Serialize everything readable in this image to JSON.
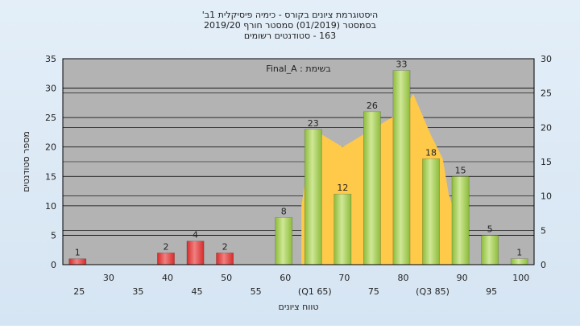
{
  "chart_data": {
    "type": "bar",
    "title_lines": [
      "היסטוגרמת ציונים בקורס - כימיה פיסיקלית 1ב'",
      "בסמסטר  (01/2019)  סמסטר חורף 2019/20",
      "163 - סטודנטים רשומים"
    ],
    "note": "בשימת : Final_A",
    "xlabel": "טווח ציונים",
    "ylabel": "מספר סטודנטים",
    "ylim": [
      0,
      35
    ],
    "y2lim": [
      0,
      30
    ],
    "y_ticks": [
      0,
      5,
      10,
      15,
      20,
      25,
      30,
      35
    ],
    "y2_ticks": [
      0,
      5,
      10,
      15,
      20,
      25,
      30
    ],
    "x_range": [
      22.5,
      102.5
    ],
    "categories": [
      25,
      30,
      35,
      40,
      45,
      50,
      55,
      60,
      65,
      70,
      75,
      80,
      85,
      90,
      95,
      100
    ],
    "x_tick_labels": [
      "25",
      "30",
      "35",
      "40",
      "45",
      "50",
      "55",
      "60",
      "(Q1 65)",
      "70",
      "75",
      "80",
      "(Q3 85)",
      "90",
      "95",
      "100"
    ],
    "values": [
      1,
      0,
      0,
      2,
      4,
      2,
      0,
      8,
      23,
      12,
      26,
      33,
      18,
      15,
      5,
      1
    ],
    "value_labels": [
      "1",
      "",
      "",
      "2",
      "4",
      "2",
      "",
      "8",
      "23",
      "12",
      "26",
      "33",
      "18",
      "15",
      "5",
      "1"
    ],
    "fail_threshold": 55,
    "colors": {
      "fail_bar": "#d62a2a",
      "fail_bar_light": "#f08080",
      "pass_bar": "#8dbb3c",
      "pass_bar_light": "#cfe896",
      "distribution_area": "#ffc94a",
      "plot_background": "#b3b3b3",
      "grid": "#000000"
    },
    "grid": true,
    "distribution_area": {
      "x": [
        63,
        65,
        70,
        75,
        80,
        82,
        85,
        87,
        88,
        90
      ],
      "y": [
        10,
        23,
        20,
        23,
        26,
        29,
        22,
        18,
        12,
        6
      ]
    }
  }
}
